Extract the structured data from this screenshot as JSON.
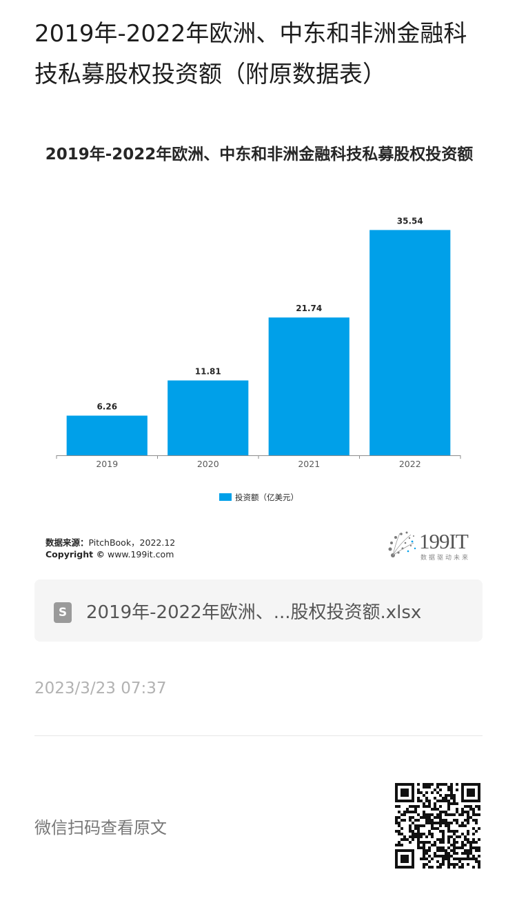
{
  "article": {
    "title": "2019年-2022年欧洲、中东和非洲金融科技私募股权投资额（附原数据表）"
  },
  "chart_data": {
    "type": "bar",
    "title": "2019年-2022年欧洲、中东和非洲金融科技私募股权投资额",
    "categories": [
      "2019",
      "2020",
      "2021",
      "2022"
    ],
    "series": [
      {
        "name": "投资额（亿美元）",
        "values": [
          6.26,
          11.81,
          21.74,
          35.54
        ]
      }
    ],
    "value_labels": [
      "6.26",
      "11.81",
      "21.74",
      "35.54"
    ],
    "xlabel": "",
    "ylabel": "",
    "ylim": [
      0,
      37
    ],
    "grid": false,
    "legend_position": "bottom",
    "bar_color": "#00A0E9"
  },
  "source": {
    "label": "数据来源：",
    "text": "PitchBook，2022.12",
    "copyright_label": "Copyright ©",
    "copyright_text": "www.199it.com"
  },
  "brand": {
    "name": "199IT",
    "slogan": "数据驱动未来"
  },
  "attachment": {
    "icon": "spreadsheet-file-icon",
    "icon_glyph": "S",
    "name": "2019年-2022年欧洲、...股权投资额.xlsx"
  },
  "meta": {
    "timestamp": "2023/3/23 07:37"
  },
  "footer": {
    "qr_hint": "微信扫码查看原文",
    "qr_icon": "qr-code-icon"
  }
}
